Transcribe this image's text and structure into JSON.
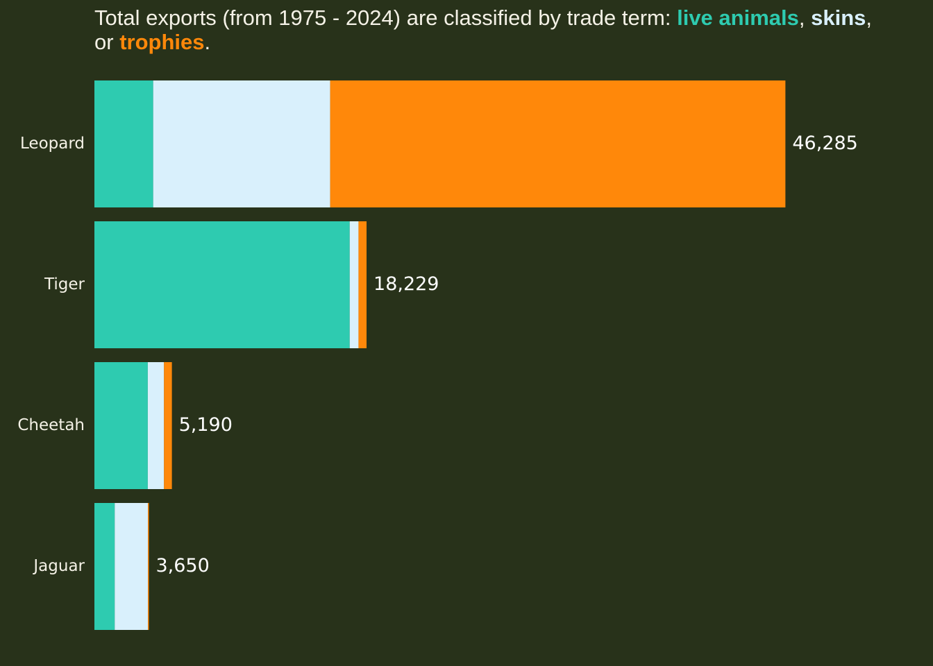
{
  "chart_data": {
    "type": "stacked-bar-horizontal",
    "title": {
      "prefix": "Total exports (from 1975 - 2024) are classified by trade term: ",
      "sep1": ", ",
      "sep2": ", or ",
      "suffix": "."
    },
    "categories": [
      "Leopard",
      "Tiger",
      "Cheetah",
      "Jaguar"
    ],
    "series": [
      {
        "name": "live animals",
        "color": "#2ecbb0",
        "values": [
          3937,
          17100,
          3575,
          1360
        ]
      },
      {
        "name": "skins",
        "color": "#d9f0fc",
        "values": [
          11855,
          590,
          1085,
          2220
        ]
      },
      {
        "name": "trophies",
        "color": "#ff880a",
        "values": [
          30493,
          539,
          530,
          70
        ]
      }
    ],
    "totals": [
      46285,
      18229,
      5190,
      3650
    ],
    "total_labels": [
      "46,285",
      "18,229",
      "5,190",
      "3,650"
    ]
  }
}
